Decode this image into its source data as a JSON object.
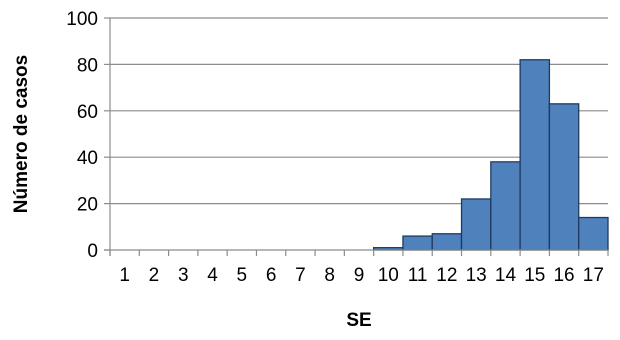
{
  "chart_data": {
    "type": "bar",
    "title": "",
    "xlabel": "SE",
    "ylabel": "Número de casos",
    "categories": [
      "1",
      "2",
      "3",
      "4",
      "5",
      "6",
      "7",
      "8",
      "9",
      "10",
      "11",
      "12",
      "13",
      "14",
      "15",
      "16",
      "17"
    ],
    "values": [
      0,
      0,
      0,
      0,
      0,
      0,
      0,
      0,
      0,
      1,
      6,
      7,
      22,
      38,
      82,
      63,
      14
    ],
    "ylim": [
      0,
      100
    ],
    "yticks": [
      0,
      20,
      40,
      60,
      80,
      100
    ],
    "grid": true,
    "legend": "none",
    "colors": {
      "bar_fill": "#4f81bd",
      "bar_stroke": "#1f3a5f",
      "grid": "#8c8c8c",
      "axis": "#8c8c8c"
    }
  }
}
